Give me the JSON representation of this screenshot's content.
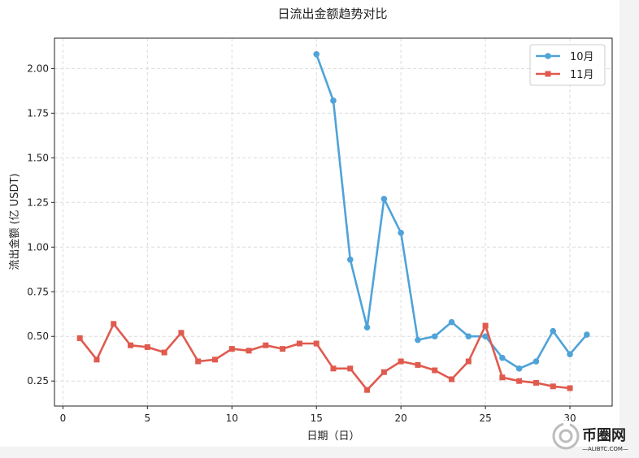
{
  "chart_data": {
    "type": "line",
    "title": "日流出金额趋势对比",
    "xlabel": "日期（日）",
    "ylabel": "流出金额 (亿 USDT)",
    "xlim": [
      -0.5,
      32.5
    ],
    "ylim": [
      0.11,
      2.17
    ],
    "xticks": [
      0,
      5,
      10,
      15,
      20,
      25,
      30
    ],
    "yticks": [
      0.25,
      0.5,
      0.75,
      1.0,
      1.25,
      1.5,
      1.75,
      2.0
    ],
    "grid": true,
    "legend_position": "top-right",
    "series": [
      {
        "name": "10月",
        "color": "#4fa3d9",
        "marker": "circle",
        "x": [
          15,
          16,
          17,
          18,
          19,
          20,
          21,
          22,
          23,
          24,
          25,
          26,
          27,
          28,
          29,
          30,
          31
        ],
        "values": [
          2.08,
          1.82,
          0.93,
          0.55,
          1.27,
          1.08,
          0.48,
          0.5,
          0.58,
          0.5,
          0.5,
          0.38,
          0.32,
          0.36,
          0.53,
          0.4,
          0.51
        ]
      },
      {
        "name": "11月",
        "color": "#e05a4e",
        "marker": "square",
        "x": [
          1,
          2,
          3,
          4,
          5,
          6,
          7,
          8,
          9,
          10,
          11,
          12,
          13,
          14,
          15,
          16,
          17,
          18,
          19,
          20,
          21,
          22,
          23,
          24,
          25,
          26,
          27,
          28,
          29,
          30
        ],
        "values": [
          0.49,
          0.37,
          0.57,
          0.45,
          0.44,
          0.41,
          0.52,
          0.36,
          0.37,
          0.43,
          0.42,
          0.45,
          0.43,
          0.46,
          0.46,
          0.32,
          0.32,
          0.2,
          0.3,
          0.36,
          0.34,
          0.31,
          0.26,
          0.36,
          0.56,
          0.27,
          0.25,
          0.24,
          0.22,
          0.21
        ]
      }
    ]
  },
  "watermark": {
    "brand": "币圈网",
    "url": "—ALIBTC.COM—"
  }
}
